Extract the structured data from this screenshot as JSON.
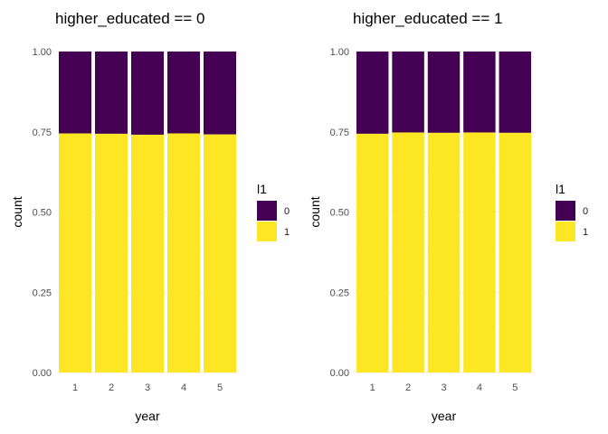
{
  "chart_data": [
    {
      "type": "bar",
      "stacked": true,
      "title": "higher_educated == 0",
      "xlabel": "year",
      "ylabel": "count",
      "categories": [
        "1",
        "2",
        "3",
        "4",
        "5"
      ],
      "ylim": [
        0,
        1
      ],
      "y_ticks": [
        "0.00",
        "0.25",
        "0.50",
        "0.75",
        "1.00"
      ],
      "grid": true,
      "legend": {
        "title": "l1",
        "placement": "right",
        "entries": [
          "0",
          "1"
        ]
      },
      "series": [
        {
          "name": "1",
          "color": "#FDE725",
          "values": [
            0.745,
            0.744,
            0.741,
            0.745,
            0.742
          ]
        },
        {
          "name": "0",
          "color": "#440154",
          "values": [
            0.255,
            0.256,
            0.259,
            0.255,
            0.258
          ]
        }
      ]
    },
    {
      "type": "bar",
      "stacked": true,
      "title": "higher_educated == 1",
      "xlabel": "year",
      "ylabel": "count",
      "categories": [
        "1",
        "2",
        "3",
        "4",
        "5"
      ],
      "ylim": [
        0,
        1
      ],
      "y_ticks": [
        "0.00",
        "0.25",
        "0.50",
        "0.75",
        "1.00"
      ],
      "grid": true,
      "legend": {
        "title": "l1",
        "placement": "right",
        "entries": [
          "0",
          "1"
        ]
      },
      "series": [
        {
          "name": "1",
          "color": "#FDE725",
          "values": [
            0.744,
            0.748,
            0.747,
            0.748,
            0.747
          ]
        },
        {
          "name": "0",
          "color": "#440154",
          "values": [
            0.256,
            0.252,
            0.253,
            0.252,
            0.253
          ]
        }
      ]
    }
  ]
}
